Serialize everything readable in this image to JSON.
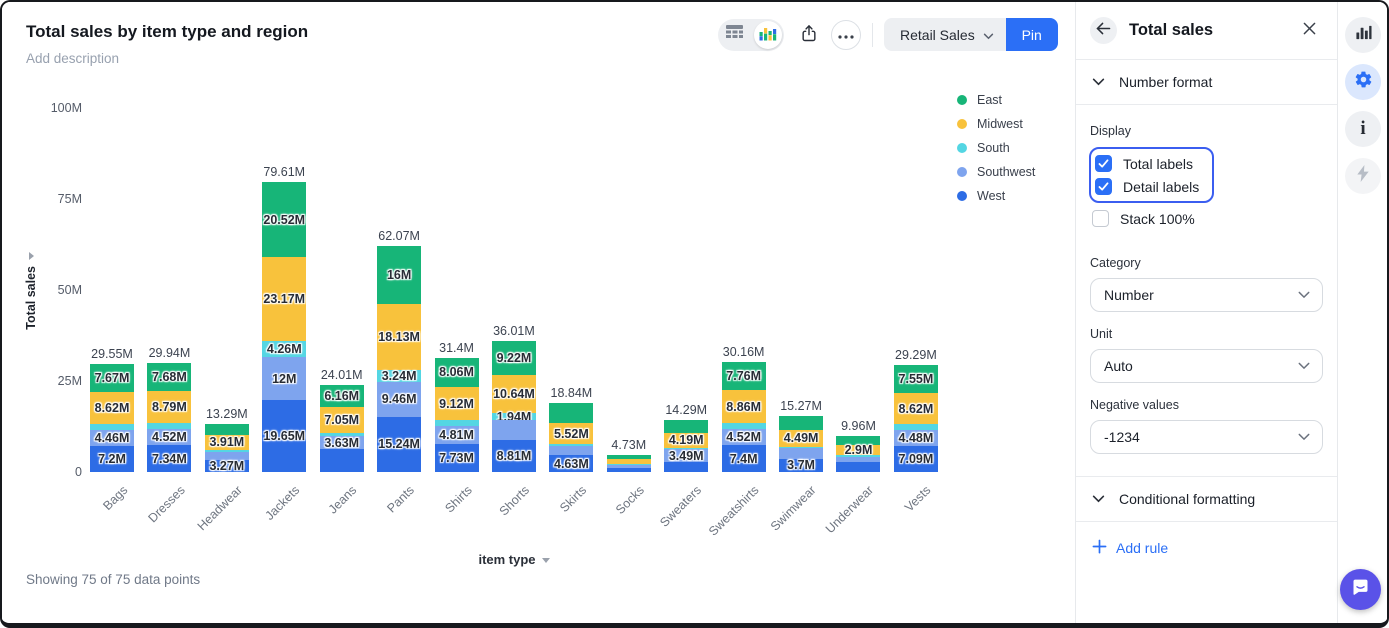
{
  "header": {
    "title": "Total sales by item type and region",
    "description_placeholder": "Add description"
  },
  "toolbar": {
    "dataset_label": "Retail Sales",
    "pin_label": "Pin"
  },
  "chart_data": {
    "type": "bar",
    "stacked": true,
    "title": "Total sales by item type and region",
    "xlabel": "item type",
    "ylabel": "Total sales",
    "value_unit": "millions",
    "ylim": [
      0,
      100
    ],
    "grid": false,
    "legend_position": "right",
    "y_ticks": [
      {
        "label": "100M",
        "value": 100
      },
      {
        "label": "75M",
        "value": 75
      },
      {
        "label": "50M",
        "value": 50
      },
      {
        "label": "25M",
        "value": 25
      },
      {
        "label": "0",
        "value": 0
      }
    ],
    "categories": [
      "Bags",
      "Dresses",
      "Headwear",
      "Jackets",
      "Jeans",
      "Pants",
      "Shirts",
      "Shorts",
      "Skirts",
      "Socks",
      "Sweaters",
      "Sweatshirts",
      "Swimwear",
      "Underwear",
      "Vests"
    ],
    "total_labels": [
      "29.55M",
      "29.94M",
      "13.29M",
      "79.61M",
      "24.01M",
      "62.07M",
      "31.4M",
      "36.01M",
      "18.84M",
      "4.73M",
      "14.29M",
      "30.16M",
      "15.27M",
      "9.96M",
      "29.29M"
    ],
    "series": [
      {
        "name": "East",
        "color": "#17b578",
        "values": [
          7.67,
          7.68,
          3.2,
          20.52,
          6.16,
          16,
          8.06,
          9.22,
          5.5,
          1.2,
          3.5,
          7.76,
          3.8,
          2.5,
          7.55
        ],
        "labels": [
          "7.67M",
          "7.68M",
          null,
          "20.52M",
          "6.16M",
          "16M",
          "8.06M",
          "9.22M",
          null,
          null,
          null,
          "7.76M",
          null,
          null,
          "7.55M"
        ]
      },
      {
        "name": "Midwest",
        "color": "#f8c23c",
        "values": [
          8.62,
          8.79,
          3.91,
          23.17,
          7.05,
          18.13,
          9.12,
          10.64,
          5.52,
          1.2,
          4.19,
          8.86,
          4.49,
          2.9,
          8.62
        ],
        "labels": [
          "8.62M",
          "8.79M",
          "3.91M",
          "23.17M",
          "7.05M",
          "18.13M",
          "9.12M",
          "10.64M",
          "5.52M",
          null,
          "4.19M",
          "8.86M",
          "4.49M",
          "2.9M",
          "8.62M"
        ]
      },
      {
        "name": "South",
        "color": "#54d6e3",
        "values": [
          1.6,
          1.61,
          0.8,
          4.26,
          0.9,
          3.24,
          1.68,
          1.94,
          0.56,
          0.33,
          0.4,
          1.62,
          0.4,
          0.3,
          1.55
        ],
        "labels": [
          null,
          null,
          null,
          "4.26M",
          null,
          "3.24M",
          null,
          "1.94M",
          null,
          null,
          null,
          null,
          null,
          null,
          null
        ]
      },
      {
        "name": "Southwest",
        "color": "#7ea4ee",
        "values": [
          4.46,
          4.52,
          2.11,
          12,
          3.63,
          9.46,
          4.81,
          5.4,
          2.63,
          0.9,
          3.49,
          4.52,
          2.88,
          1.4,
          4.48
        ],
        "labels": [
          "4.46M",
          "4.52M",
          null,
          "12M",
          "3.63M",
          "9.46M",
          "4.81M",
          null,
          null,
          null,
          "3.49M",
          "4.52M",
          null,
          null,
          "4.48M"
        ]
      },
      {
        "name": "West",
        "color": "#2d6ce5",
        "values": [
          7.2,
          7.34,
          3.27,
          19.65,
          6.27,
          15.24,
          7.73,
          8.81,
          4.63,
          1.1,
          2.71,
          7.4,
          3.7,
          2.86,
          7.09
        ],
        "labels": [
          "7.2M",
          "7.34M",
          "3.27M",
          "19.65M",
          null,
          "15.24M",
          "7.73M",
          "8.81M",
          "4.63M",
          null,
          null,
          "7.4M",
          "3.7M",
          null,
          "7.09M"
        ]
      }
    ]
  },
  "footer": {
    "status": "Showing 75 of 75 data points"
  },
  "panel": {
    "title": "Total sales",
    "number_format_label": "Number format",
    "display": {
      "label": "Display",
      "checkboxes": [
        {
          "label": "Total labels",
          "checked": true
        },
        {
          "label": "Detail labels",
          "checked": true
        },
        {
          "label": "Stack 100%",
          "checked": false
        }
      ]
    },
    "category": {
      "label": "Category",
      "value": "Number"
    },
    "unit": {
      "label": "Unit",
      "value": "Auto"
    },
    "negative_values": {
      "label": "Negative values",
      "value": "-1234"
    },
    "conditional_formatting_label": "Conditional formatting",
    "add_rule_label": "Add rule"
  },
  "colors": {
    "east": "#17b578",
    "midwest": "#f8c23c",
    "south": "#54d6e3",
    "southwest": "#7ea4ee",
    "west": "#2d6ce5",
    "accent_blue": "#2b6ff6",
    "chat_bubble": "#5a52e8"
  }
}
